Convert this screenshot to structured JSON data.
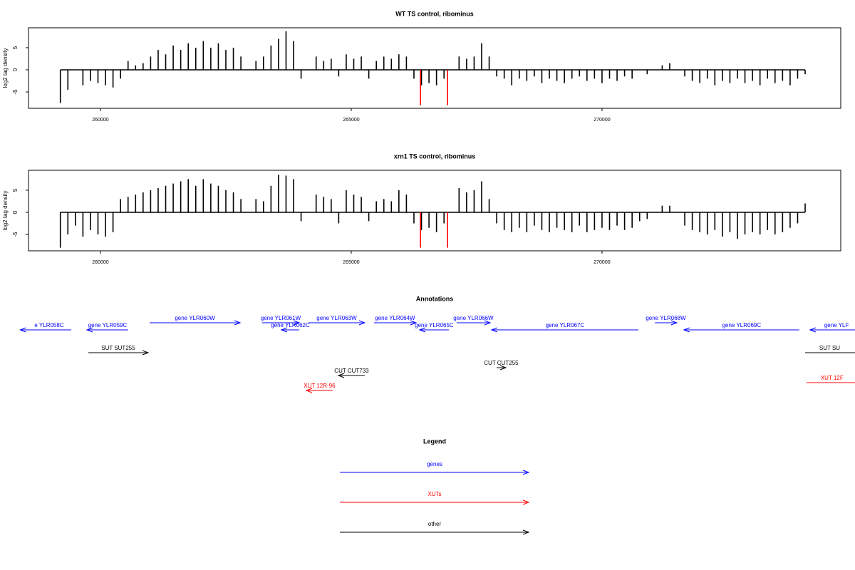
{
  "chart_data": [
    {
      "type": "bar",
      "title": "WT TS control, ribominus",
      "ylabel": "log2 tag density",
      "xlim": [
        258565,
        274760
      ],
      "ylim": [
        -8.7,
        9.5
      ],
      "xticks": [
        260000,
        265000,
        270000
      ],
      "yticks": [
        -5,
        0,
        5
      ],
      "series": [
        {
          "color": "#000000",
          "x": [
            259200,
            259350,
            259500,
            259650,
            259800,
            259950,
            260100,
            260250,
            260400,
            260550,
            260700,
            260850,
            261000,
            261150,
            261300,
            261450,
            261600,
            261750,
            261900,
            262050,
            262200,
            262350,
            262500,
            262650,
            262800,
            262950,
            263100,
            263250,
            263400,
            263550,
            263700,
            263850,
            264000,
            264150,
            264300,
            264450,
            264600,
            264750,
            264900,
            265050,
            265200,
            265350,
            265500,
            265650,
            265800,
            265950,
            266100,
            266250,
            266400,
            266550,
            266700,
            266850,
            267000,
            267150,
            267300,
            267450,
            267600,
            267750,
            267900,
            268050,
            268200,
            268350,
            268500,
            268650,
            268800,
            268950,
            269100,
            269250,
            269400,
            269550,
            269700,
            269850,
            270000,
            270150,
            270300,
            270450,
            270600,
            270750,
            270900,
            271050,
            271200,
            271350,
            271500,
            271650,
            271800,
            271950,
            272100,
            272250,
            272400,
            272550,
            272700,
            272850,
            273000,
            273150,
            273300,
            273450,
            273600,
            273750,
            273900,
            274050
          ],
          "values": [
            -7.5,
            -4.5,
            0,
            -3.5,
            -2.5,
            -3,
            -3.5,
            -4,
            -2,
            2,
            1,
            1.5,
            3,
            4.5,
            3.5,
            5.5,
            4.5,
            6,
            5,
            6.5,
            5,
            6,
            4.5,
            5,
            3,
            0,
            2,
            3,
            5.5,
            7,
            8.7,
            6.5,
            -2,
            0,
            3,
            2,
            2.5,
            -1.5,
            3.5,
            2.5,
            3,
            -2,
            2,
            3,
            2.5,
            3.5,
            3,
            -2,
            -3.5,
            -3,
            -3.5,
            -2,
            0,
            3,
            2.5,
            3,
            6,
            3,
            -1.5,
            -2,
            -3.5,
            -2,
            -2.5,
            -1.5,
            -3,
            -2,
            -2.5,
            -3,
            -2,
            -1.5,
            -2.5,
            -2,
            -3,
            -2,
            -2.5,
            -1.5,
            -2,
            0,
            -1,
            0,
            1,
            1.5,
            0,
            -1.5,
            -2.5,
            -3,
            -2,
            -3.5,
            -2.5,
            -3,
            -2,
            -3,
            -2.5,
            -3.5,
            -2,
            -3,
            -2.5,
            -3.5,
            -2,
            -1
          ]
        },
        {
          "color": "#ff0000",
          "x": [
            266380,
            266920
          ],
          "values": [
            -8,
            -8
          ]
        }
      ]
    },
    {
      "type": "bar",
      "title": "xrn1 TS control, ribominus",
      "ylabel": "log2 tag density",
      "xlim": [
        258565,
        274760
      ],
      "ylim": [
        -8.7,
        9.5
      ],
      "xticks": [
        260000,
        265000,
        270000
      ],
      "yticks": [
        -5,
        0,
        5
      ],
      "series": [
        {
          "color": "#000000",
          "x": [
            259200,
            259350,
            259500,
            259650,
            259800,
            259950,
            260100,
            260250,
            260400,
            260550,
            260700,
            260850,
            261000,
            261150,
            261300,
            261450,
            261600,
            261750,
            261900,
            262050,
            262200,
            262350,
            262500,
            262650,
            262800,
            262950,
            263100,
            263250,
            263400,
            263550,
            263700,
            263850,
            264000,
            264150,
            264300,
            264450,
            264600,
            264750,
            264900,
            265050,
            265200,
            265350,
            265500,
            265650,
            265800,
            265950,
            266100,
            266250,
            266400,
            266550,
            266700,
            266850,
            267000,
            267150,
            267300,
            267450,
            267600,
            267750,
            267900,
            268050,
            268200,
            268350,
            268500,
            268650,
            268800,
            268950,
            269100,
            269250,
            269400,
            269550,
            269700,
            269850,
            270000,
            270150,
            270300,
            270450,
            270600,
            270750,
            270900,
            271050,
            271200,
            271350,
            271500,
            271650,
            271800,
            271950,
            272100,
            272250,
            272400,
            272550,
            272700,
            272850,
            273000,
            273150,
            273300,
            273450,
            273600,
            273750,
            273900,
            274050
          ],
          "values": [
            -8,
            -5,
            -3,
            -5.5,
            -4,
            -5,
            -5.5,
            -4.5,
            3,
            3.5,
            4,
            4.5,
            5,
            5.5,
            6,
            6.5,
            7,
            7.5,
            6,
            7.5,
            6.5,
            6,
            5,
            4.5,
            3,
            0,
            3,
            2.5,
            6,
            8.5,
            8.3,
            7.5,
            -2,
            0,
            4,
            3.5,
            3,
            -2.5,
            5,
            4,
            3.5,
            -2,
            2.5,
            3,
            2.5,
            5,
            4,
            -2.5,
            -4,
            -3.5,
            -4.5,
            -2.5,
            0,
            5.5,
            4.5,
            5,
            7,
            3,
            -2.5,
            -4,
            -4.5,
            -3.5,
            -4.5,
            -3,
            -4,
            -4.5,
            -3.5,
            -4,
            -4.5,
            -3,
            -4.5,
            -4,
            -3.5,
            -4,
            -3,
            -4,
            -3.5,
            -2,
            -1.5,
            0,
            1.5,
            1.5,
            0,
            -3,
            -4,
            -4.5,
            -5,
            -4,
            -5.5,
            -4.5,
            -6,
            -5,
            -4.5,
            -5,
            -4,
            -5,
            -4.5,
            -3.5,
            -2.5,
            2
          ]
        },
        {
          "color": "#ff0000",
          "x": [
            266380,
            266920
          ],
          "values": [
            -8,
            -8
          ]
        }
      ]
    },
    {
      "type": "annotation",
      "title": "Annotations",
      "features": [
        {
          "label": "e YLR058C",
          "start": 258400,
          "end": 259417,
          "strand": "-",
          "color": "#0000ff"
        },
        {
          "label": "gene YLR059C",
          "start": 259730,
          "end": 260554,
          "strand": "-",
          "color": "#0000ff"
        },
        {
          "label": "gene YLR060W",
          "start": 260980,
          "end": 262784,
          "strand": "+",
          "color": "#0000ff"
        },
        {
          "label": "gene YLR061W",
          "start": 263224,
          "end": 263963,
          "strand": "+",
          "color": "#0000ff"
        },
        {
          "label": "gene YLR062C",
          "start": 263608,
          "end": 263963,
          "strand": "-",
          "color": "#0000ff"
        },
        {
          "label": "gene YLR063W",
          "start": 264147,
          "end": 265270,
          "strand": "+",
          "color": "#0000ff"
        },
        {
          "label": "gene YLR064W",
          "start": 265454,
          "end": 266292,
          "strand": "+",
          "color": "#0000ff"
        },
        {
          "label": "gene YLR065C",
          "start": 266363,
          "end": 266946,
          "strand": "-",
          "color": "#0000ff"
        },
        {
          "label": "gene YLR066W",
          "start": 267102,
          "end": 267770,
          "strand": "+",
          "color": "#0000ff"
        },
        {
          "label": "gene YLR067C",
          "start": 267798,
          "end": 270724,
          "strand": "-",
          "color": "#0000ff"
        },
        {
          "label": "gene YLR068W",
          "start": 271054,
          "end": 271491,
          "strand": "+",
          "color": "#0000ff"
        },
        {
          "label": "gene YLR069C",
          "start": 271633,
          "end": 273934,
          "strand": "-",
          "color": "#0000ff"
        },
        {
          "label": "gene YLF",
          "start": 274147,
          "end": 275500,
          "strand": "-",
          "color": "#0000ff"
        },
        {
          "label": "SUT SUT255",
          "start": 259758,
          "end": 260951,
          "strand": "+",
          "color": "#000000"
        },
        {
          "label": "SUT SU",
          "start": 274048,
          "end": 275500,
          "strand": "+",
          "color": "#000000"
        },
        {
          "label": "CUT CUT733",
          "start": 264744,
          "end": 265270,
          "strand": "-",
          "color": "#000000"
        },
        {
          "label": "CUT CUT255",
          "start": 267898,
          "end": 268082,
          "strand": "+",
          "color": "#000000"
        },
        {
          "label": "XUT 12R-96",
          "start": 264105,
          "end": 264630,
          "strand": "-",
          "color": "#ff0000"
        },
        {
          "label": "XUT 12F",
          "start": 274076,
          "end": 275500,
          "strand": "+",
          "color": "#ff0000"
        }
      ]
    }
  ],
  "legend": {
    "title": "Legend",
    "entries": [
      {
        "label": "genes",
        "color": "#0000ff"
      },
      {
        "label": "XUTs",
        "color": "#ff0000"
      },
      {
        "label": "other",
        "color": "#000000"
      }
    ]
  }
}
